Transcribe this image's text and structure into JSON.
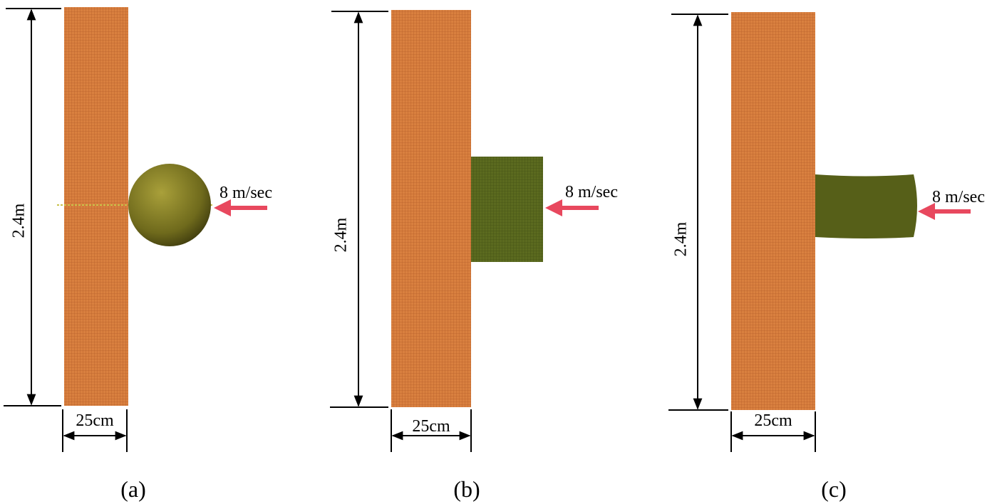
{
  "panels": [
    {
      "height_label": "2.4m",
      "width_label": "25cm",
      "speed_label": "8 m/sec",
      "caption": "(a)"
    },
    {
      "height_label": "2.4m",
      "width_label": "25cm",
      "speed_label": "8 m/sec",
      "caption": "(b)"
    },
    {
      "height_label": "2.4m",
      "width_label": "25cm",
      "speed_label": "8 m/sec",
      "caption": "(c)"
    }
  ]
}
